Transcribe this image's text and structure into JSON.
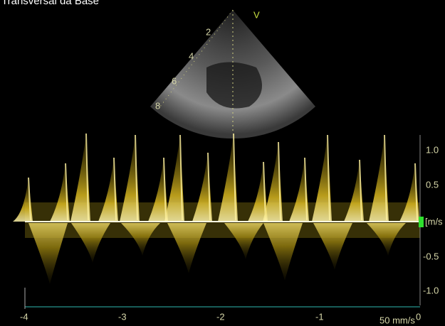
{
  "header": {
    "title": "Transversal da Base",
    "probe_marker": "V"
  },
  "depth_scale": {
    "labels": [
      "2",
      "4",
      "6",
      "8"
    ]
  },
  "velocity_scale": {
    "labels": [
      "1.0",
      "0.5",
      "[m/s",
      "-0.5",
      "-1.0"
    ]
  },
  "time_scale": {
    "labels": [
      "-4",
      "-3",
      "-2",
      "-1",
      "0"
    ],
    "sweep_speed": "50 mm/s"
  }
}
